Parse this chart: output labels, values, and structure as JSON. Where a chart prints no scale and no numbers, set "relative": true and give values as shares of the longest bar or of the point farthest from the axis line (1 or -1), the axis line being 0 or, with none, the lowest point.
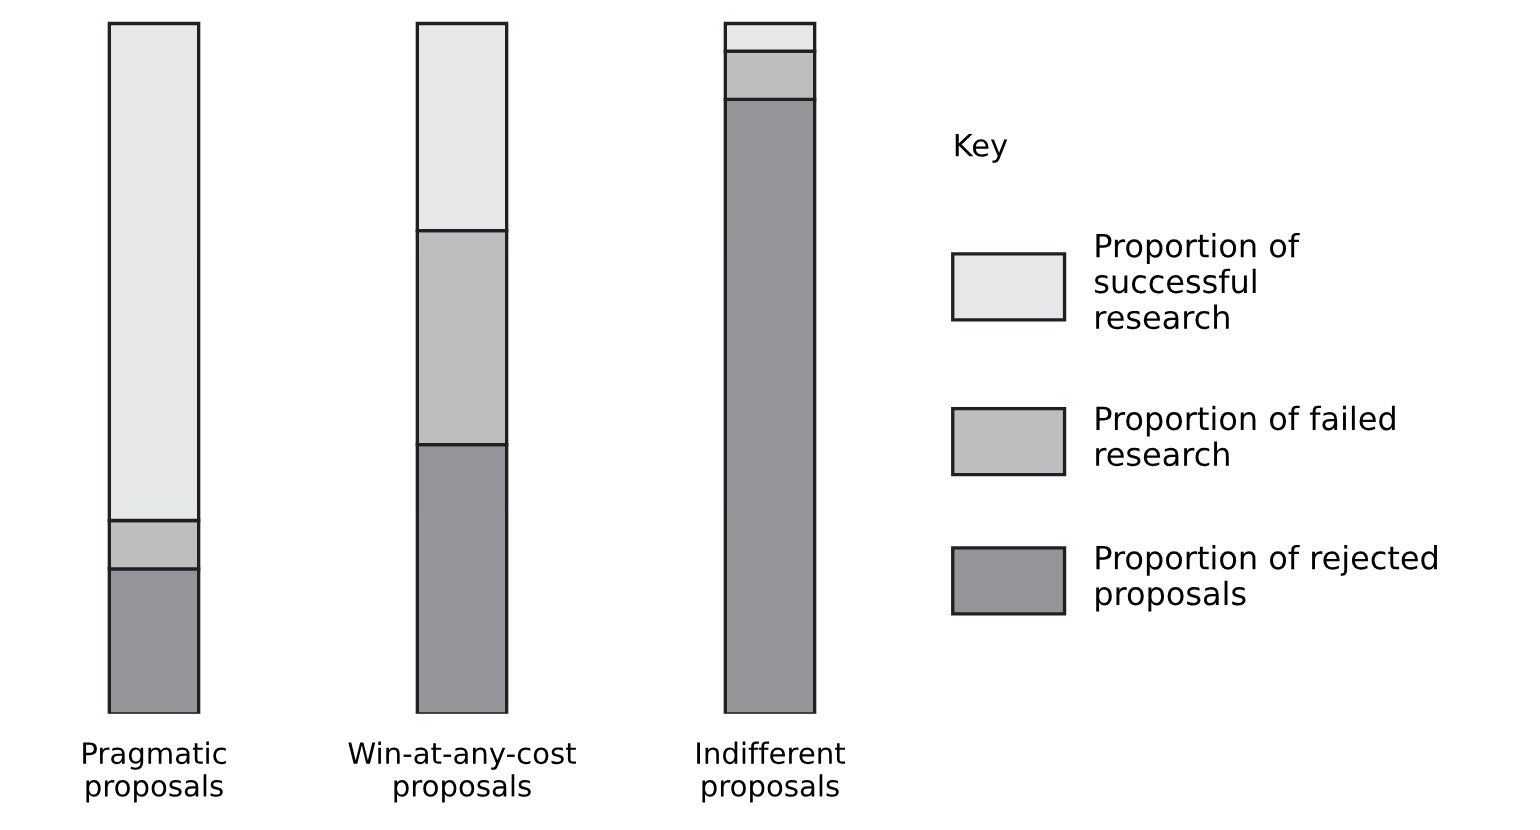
{
  "chart_data": {
    "type": "bar",
    "stacked": true,
    "relative": true,
    "legend": "right",
    "legend_title": "Key",
    "categories": [
      "Pragmatic\nproposals",
      "Win-at-any-cost\nproposals",
      "Indifferent\nproposals"
    ],
    "series": [
      {
        "name": "Proportion of rejected\nproposals",
        "color": "#939598",
        "values": [
          0.21,
          0.39,
          0.89
        ]
      },
      {
        "name": "Proportion of failed\nresearch",
        "color": "#bcbec0",
        "values": [
          0.07,
          0.31,
          0.07
        ]
      },
      {
        "name": "Proportion of\nsuccessful\nresearch",
        "color": "#e6e7e8",
        "values": [
          0.72,
          0.3,
          0.04
        ]
      }
    ]
  }
}
